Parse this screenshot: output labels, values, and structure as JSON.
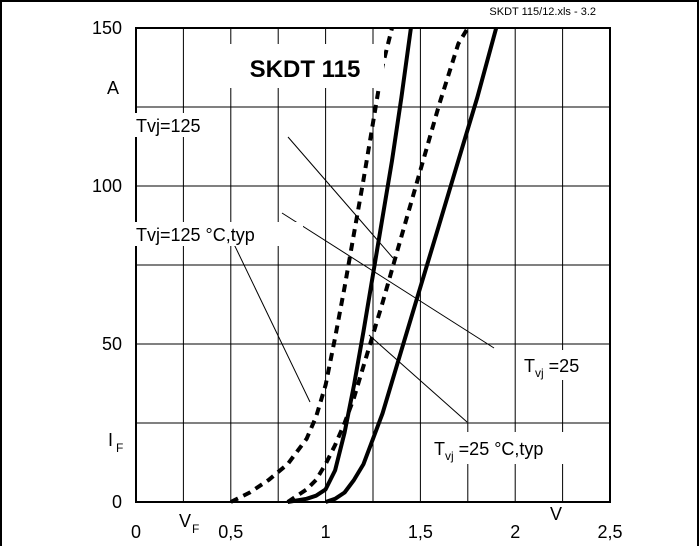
{
  "source_tag": "SKDT 115/12.xls - 3.2",
  "chart_data": {
    "type": "line",
    "title": "SKDT 115",
    "xlabel": "V",
    "xlabel_symbol": "V",
    "xlabel_symbol_sub": "F",
    "ylabel": "A",
    "ylabel_symbol": "I",
    "ylabel_symbol_sub": "F",
    "xlim": [
      0,
      2.5
    ],
    "ylim": [
      0,
      150
    ],
    "x_ticks": [
      {
        "value": 0,
        "label": "0"
      },
      {
        "value": 0.5,
        "label": "0,5"
      },
      {
        "value": 1,
        "label": "1"
      },
      {
        "value": 1.5,
        "label": "1,5"
      },
      {
        "value": 2,
        "label": "2"
      },
      {
        "value": 2.5,
        "label": "2,5"
      }
    ],
    "y_ticks": [
      {
        "value": 0,
        "label": "0"
      },
      {
        "value": 50,
        "label": "50"
      },
      {
        "value": 100,
        "label": "100"
      },
      {
        "value": 150,
        "label": "150"
      }
    ],
    "grid": true,
    "series": [
      {
        "name": "Tvj=125 °C, typ",
        "style": "dashed",
        "x": [
          0.5,
          0.6,
          0.7,
          0.8,
          0.9,
          0.95,
          1.0,
          1.05,
          1.1,
          1.15,
          1.2,
          1.25,
          1.3,
          1.35
        ],
        "y": [
          0,
          3,
          7,
          12,
          20,
          27,
          37,
          52,
          68,
          85,
          102,
          120,
          138,
          150
        ]
      },
      {
        "name": "Tvj=125",
        "style": "solid",
        "x": [
          0.8,
          0.9,
          0.95,
          1.0,
          1.05,
          1.1,
          1.15,
          1.2,
          1.25,
          1.3,
          1.35,
          1.4,
          1.45
        ],
        "y": [
          0,
          1,
          2,
          4,
          10,
          22,
          37,
          54,
          72,
          90,
          108,
          128,
          150
        ]
      },
      {
        "name": "Tvj=25 °C, typ",
        "style": "dashed",
        "x": [
          0.8,
          0.9,
          0.95,
          1.0,
          1.05,
          1.1,
          1.15,
          1.2,
          1.3,
          1.4,
          1.5,
          1.6,
          1.7,
          1.75
        ],
        "y": [
          0,
          4,
          7,
          12,
          18,
          25,
          33,
          43,
          63,
          84,
          105,
          126,
          145,
          150
        ]
      },
      {
        "name": "Tvj=25",
        "style": "solid",
        "x": [
          1.0,
          1.05,
          1.1,
          1.15,
          1.2,
          1.25,
          1.3,
          1.4,
          1.5,
          1.6,
          1.7,
          1.8,
          1.9
        ],
        "y": [
          0,
          1,
          3,
          7,
          12,
          20,
          28,
          48,
          68,
          88,
          108,
          128,
          150
        ]
      }
    ],
    "annotations": [
      {
        "text": "Tvj=125",
        "series": 1
      },
      {
        "text": "Tvj=125 °C,typ",
        "series": 0
      },
      {
        "text_main": "T",
        "text_sub": "vj",
        "text_rest": " =25",
        "series": 3
      },
      {
        "text_main": "T",
        "text_sub": "vj",
        "text_rest": " =25 °C,typ",
        "series": 2
      }
    ]
  }
}
